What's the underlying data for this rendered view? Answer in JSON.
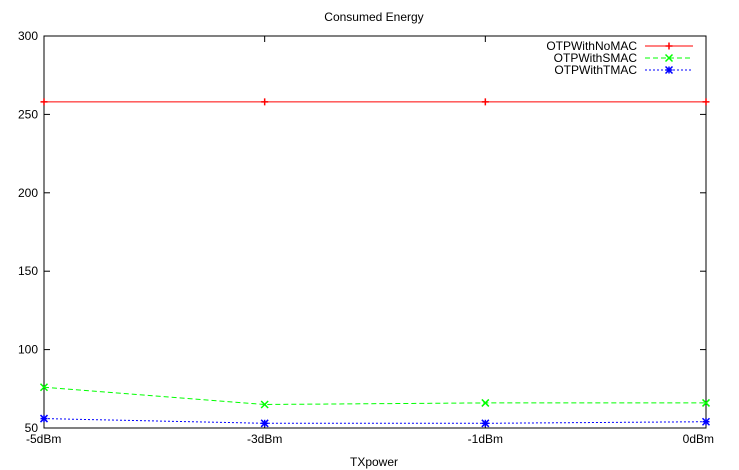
{
  "chart_data": {
    "type": "line",
    "title": "Consumed Energy",
    "xlabel": "TXpower",
    "ylabel": "",
    "categories": [
      "-5dBm",
      "-3dBm",
      "-1dBm",
      "0dBm"
    ],
    "ylim": [
      50,
      300
    ],
    "yticks": [
      50,
      100,
      150,
      200,
      250,
      300
    ],
    "grid": false,
    "legend_position": "top-right",
    "series": [
      {
        "name": "OTPWithNoMAC",
        "values": [
          258,
          258,
          258,
          258
        ],
        "color": "#ff0000",
        "dash": "solid",
        "marker": "plus"
      },
      {
        "name": "OTPWithSMAC",
        "values": [
          76,
          65,
          66,
          66
        ],
        "color": "#00ff00",
        "dash": "dashed",
        "marker": "cross"
      },
      {
        "name": "OTPWithTMAC",
        "values": [
          56,
          53,
          53,
          54
        ],
        "color": "#0000ff",
        "dash": "dotted",
        "marker": "star"
      }
    ]
  }
}
